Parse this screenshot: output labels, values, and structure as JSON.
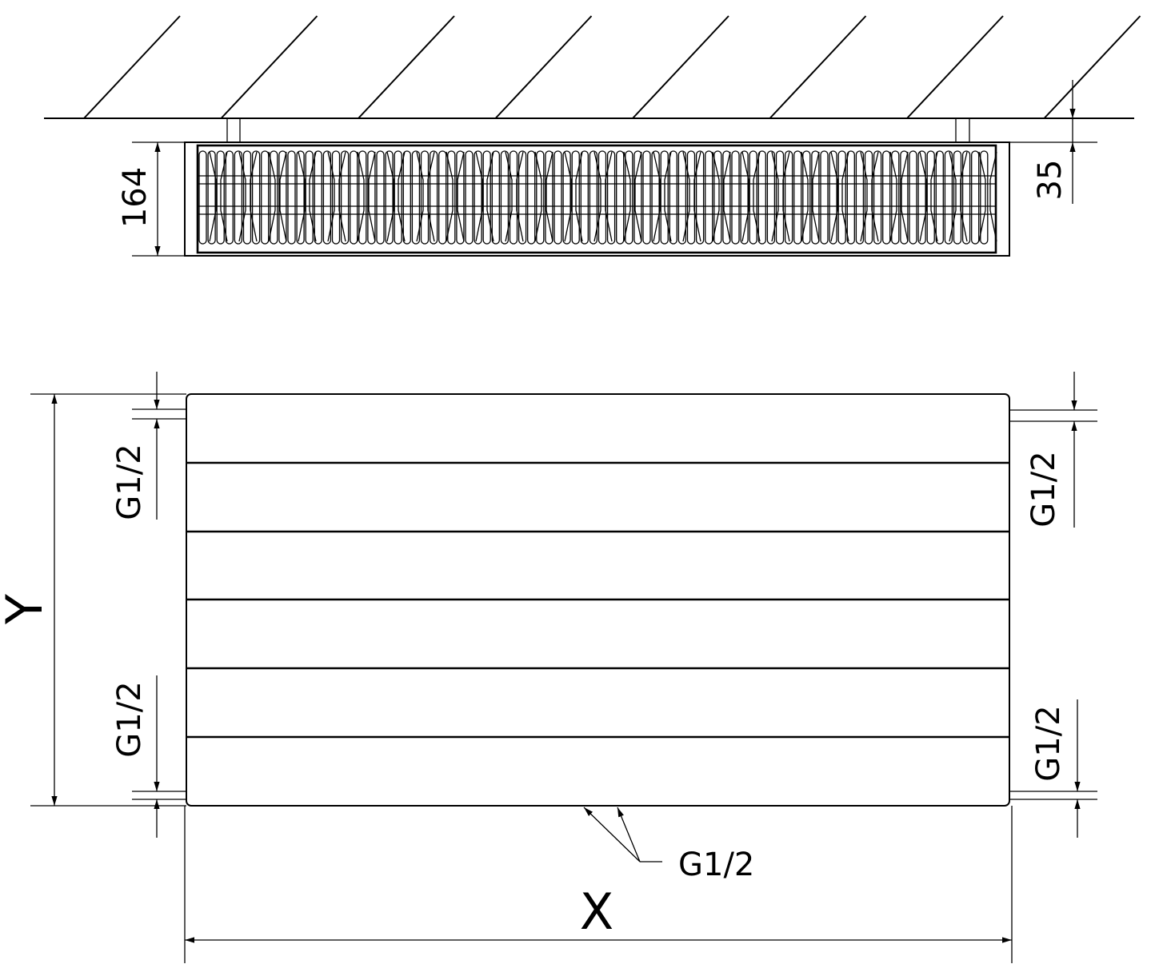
{
  "top_view": {
    "depth_dimension": "164",
    "wall_gap_dimension": "35"
  },
  "front_view": {
    "height_label": "Y",
    "width_label": "X",
    "connection_left_top": "G1/2",
    "connection_left_bottom": "G1/2",
    "connection_right_top": "G1/2",
    "connection_right_bottom": "G1/2",
    "connection_bottom": "G1/2"
  }
}
